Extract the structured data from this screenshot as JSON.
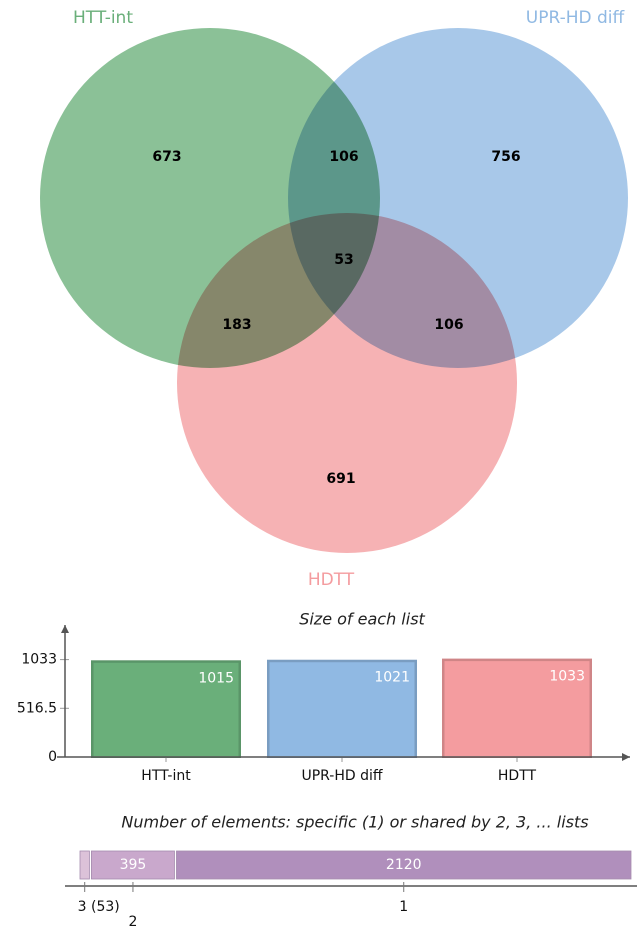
{
  "chart_data": [
    {
      "type": "venn",
      "sets": [
        {
          "name": "HTT-int",
          "color": "#6aaf7a"
        },
        {
          "name": "UPR-HD diff",
          "color": "#90b9e3"
        },
        {
          "name": "HDTT",
          "color": "#f49c9f"
        }
      ],
      "regions": [
        673,
        106,
        756,
        53,
        183,
        106,
        691
      ]
    },
    {
      "type": "bar",
      "title": "Size of each list",
      "categories": [
        "HTT-int",
        "UPR-HD diff",
        "HDTT"
      ],
      "values": [
        1015,
        1021,
        1033
      ],
      "colors": [
        "#6aaf7a",
        "#90b9e3",
        "#f49c9f"
      ],
      "ylim": [
        0,
        1400
      ],
      "yticks": [
        0,
        516.5,
        1033
      ]
    },
    {
      "type": "stacked-hbar",
      "title": "Number of elements: specific (1) or shared by 2, 3, ... lists",
      "categories": [
        "3 (53)",
        "2",
        "1"
      ],
      "values": [
        53,
        395,
        2120
      ],
      "colors": [
        "#dcc2d9",
        "#c9a8cc",
        "#b08fbc"
      ],
      "xlim": [
        0,
        2568
      ]
    }
  ]
}
